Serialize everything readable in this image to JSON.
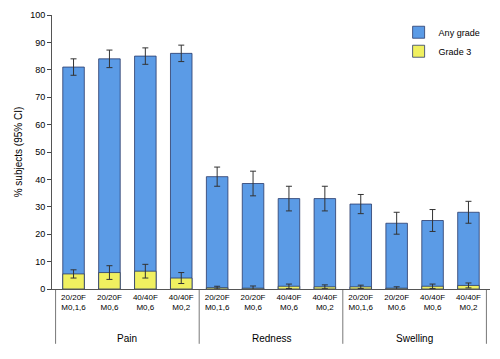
{
  "chart_data": {
    "type": "bar",
    "categories": [
      "20/20F M0,1,6",
      "20/20F M0,6",
      "40/40F M0,6",
      "40/40F M0,2",
      "20/20F M0,1,6",
      "20/20F M0,6",
      "40/40F M0,6",
      "40/40F M0,2",
      "20/20F M0,1,6",
      "20/20F M0,6",
      "40/40F M0,6",
      "40/40F M0,2"
    ],
    "groups": [
      "Pain",
      "Pain",
      "Pain",
      "Pain",
      "Redness",
      "Redness",
      "Redness",
      "Redness",
      "Swelling",
      "Swelling",
      "Swelling",
      "Swelling"
    ],
    "series": [
      {
        "name": "Any grade",
        "color": "#5b9be6",
        "values": [
          81,
          84,
          85,
          86,
          41,
          38.5,
          33,
          33,
          31,
          24,
          25,
          28
        ],
        "errors": [
          3,
          3.2,
          3,
          3,
          3.5,
          4.5,
          4.5,
          4.5,
          3.5,
          4,
          4,
          4
        ]
      },
      {
        "name": "Grade 3",
        "color": "#f0f060",
        "values": [
          5.5,
          6,
          6.5,
          4,
          0.5,
          0.3,
          1,
          0.8,
          0.8,
          0.3,
          1,
          1.3
        ],
        "errors": [
          1.5,
          2.5,
          2.5,
          2,
          0.5,
          0.8,
          0.8,
          0.7,
          0.6,
          0.5,
          0.8,
          0.9
        ]
      }
    ],
    "y_label": "% subjects (95% CI)",
    "ylim": [
      0,
      100
    ],
    "yticks": [
      0,
      10,
      20,
      30,
      40,
      50,
      60,
      70,
      80,
      90,
      100
    ],
    "stacked": false,
    "grid": false,
    "legend": "top-right"
  }
}
